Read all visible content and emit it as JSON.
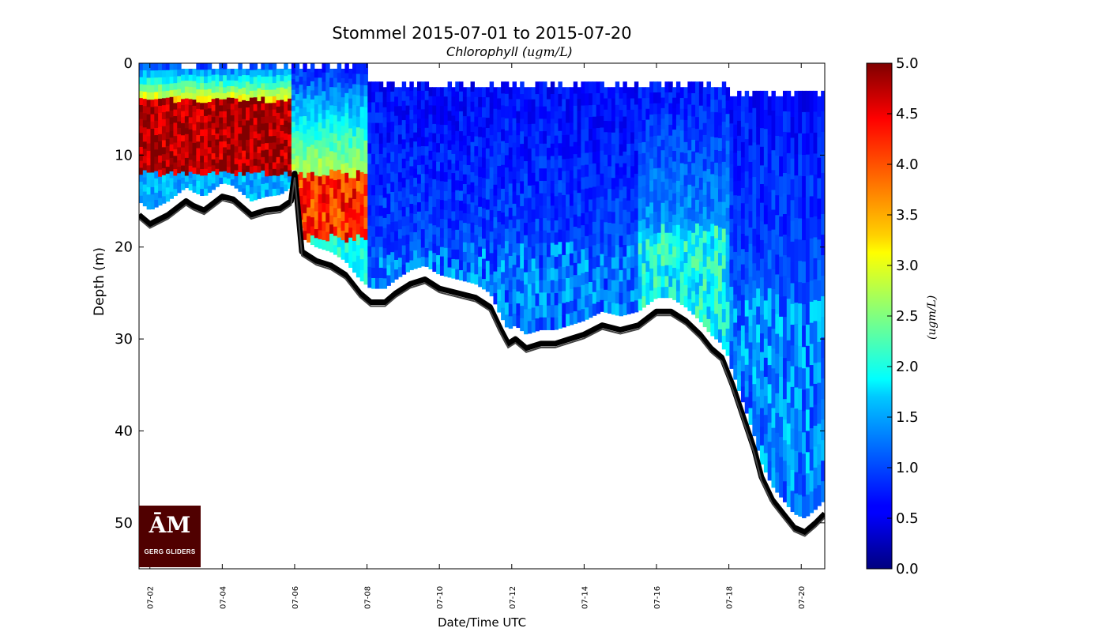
{
  "chart_data": {
    "type": "heatmap",
    "title": "Stommel 2015-07-01 to 2015-07-20",
    "subtitle": "Chlorophyll (",
    "subtitle_math": "ugm/L",
    "xlabel": "Date/Time UTC",
    "ylabel": "Depth (m)",
    "colorbar_label": "(ugm/L)",
    "colormap": "jet",
    "x_tick_labels": [
      "07-02",
      "07-04",
      "07-06",
      "07-08",
      "07-10",
      "07-12",
      "07-14",
      "07-16",
      "07-18",
      "07-20"
    ],
    "x_ticks_day": [
      2,
      4,
      6,
      8,
      10,
      12,
      14,
      16,
      18,
      20
    ],
    "xlim_day": [
      1.7,
      20.65
    ],
    "y_ticks": [
      0,
      10,
      20,
      30,
      40,
      50
    ],
    "ylim": [
      55,
      0
    ],
    "y_inverted": true,
    "colorbar_ticks": [
      0.0,
      0.5,
      1.0,
      1.5,
      2.0,
      2.5,
      3.0,
      3.5,
      4.0,
      4.5,
      5.0
    ],
    "colorbar_range": [
      0,
      5
    ],
    "bottom_depth_series": {
      "name": "",
      "day": [
        1.7,
        2.0,
        2.5,
        3.0,
        3.2,
        3.5,
        4.0,
        4.3,
        4.8,
        5.2,
        5.6,
        5.9,
        6.0,
        6.2,
        6.6,
        7.0,
        7.4,
        7.8,
        8.1,
        8.5,
        8.8,
        9.2,
        9.6,
        10.0,
        10.5,
        11.0,
        11.4,
        11.7,
        11.9,
        12.1,
        12.4,
        12.8,
        13.2,
        13.6,
        14.0,
        14.5,
        15.0,
        15.5,
        16.0,
        16.4,
        16.8,
        17.2,
        17.5,
        17.8,
        18.1,
        18.4,
        18.7,
        18.9,
        19.2,
        19.5,
        19.8,
        20.1,
        20.4,
        20.65
      ],
      "depth": [
        16.5,
        17.5,
        16.5,
        15.0,
        15.5,
        16.0,
        14.5,
        14.8,
        16.5,
        16.0,
        15.8,
        15.0,
        12.0,
        20.5,
        21.5,
        22.0,
        23.0,
        25.0,
        26.0,
        26.0,
        25.0,
        24.0,
        23.5,
        24.5,
        25.0,
        25.5,
        26.5,
        29.0,
        30.5,
        30.0,
        31.0,
        30.5,
        30.5,
        30.0,
        29.5,
        28.5,
        29.0,
        28.5,
        27.0,
        27.0,
        28.0,
        29.5,
        31.0,
        32.0,
        35.0,
        38.5,
        42.0,
        45.0,
        47.5,
        49.0,
        50.5,
        51.0,
        50.0,
        49.0
      ]
    },
    "chlorophyll_regimes": [
      {
        "day_range": [
          1.7,
          5.9
        ],
        "depth_range": [
          0,
          16
        ],
        "surface_value": 0.8,
        "core_depth_range": [
          4,
          12
        ],
        "core_value": 4.8,
        "deep_value": 1.5
      },
      {
        "day_range": [
          5.9,
          8.0
        ],
        "depth_range": [
          0,
          22
        ],
        "surface_value": 0.7,
        "core_depth_range": [
          12,
          19
        ],
        "core_value": 4.2,
        "deep_value": 2.0
      },
      {
        "day_range": [
          8.0,
          15.5
        ],
        "depth_range": [
          2,
          29
        ],
        "surface_value": 0.6,
        "core_depth_range": [
          20,
          29
        ],
        "core_value": 1.2,
        "deep_value": 1.2
      },
      {
        "day_range": [
          15.5,
          18.0
        ],
        "depth_range": [
          2,
          29
        ],
        "surface_value": 0.6,
        "core_depth_range": [
          18,
          29
        ],
        "core_value": 1.9,
        "deep_value": 1.6
      },
      {
        "day_range": [
          18.0,
          20.65
        ],
        "depth_range": [
          3,
          48
        ],
        "surface_value": 0.6,
        "core_depth_range": [
          25,
          48
        ],
        "core_value": 1.3,
        "deep_value": 1.4
      }
    ]
  },
  "logo": {
    "mark": "ĀM",
    "text": "GERG GLIDERS"
  }
}
